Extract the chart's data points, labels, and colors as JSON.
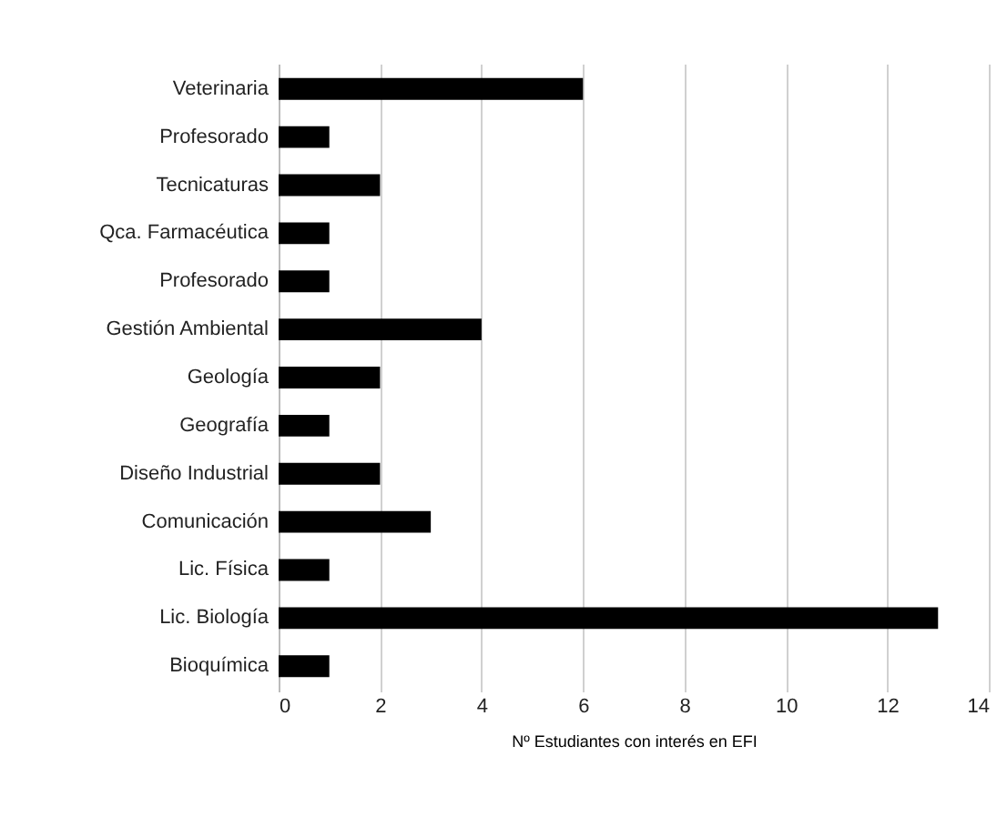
{
  "chart_data": {
    "type": "bar",
    "orientation": "horizontal",
    "xlabel": "Nº Estudiantes con interés en EFI",
    "categories": [
      "Veterinaria",
      "Profesorado",
      "Tecnicaturas",
      "Qca. Farmacéutica",
      "Profesorado",
      "Gestión Ambiental",
      "Geología",
      "Geografía",
      "Diseño Industrial",
      "Comunicación",
      "Lic. Física",
      "Lic. Biología",
      "Bioquímica"
    ],
    "values": [
      6,
      1,
      2,
      1,
      1,
      4,
      2,
      1,
      2,
      3,
      1,
      13,
      1
    ],
    "color": "#000000",
    "xlim": [
      0,
      14
    ],
    "xticks": [
      0,
      2,
      4,
      6,
      8,
      10,
      12,
      14
    ],
    "grid": "x"
  }
}
